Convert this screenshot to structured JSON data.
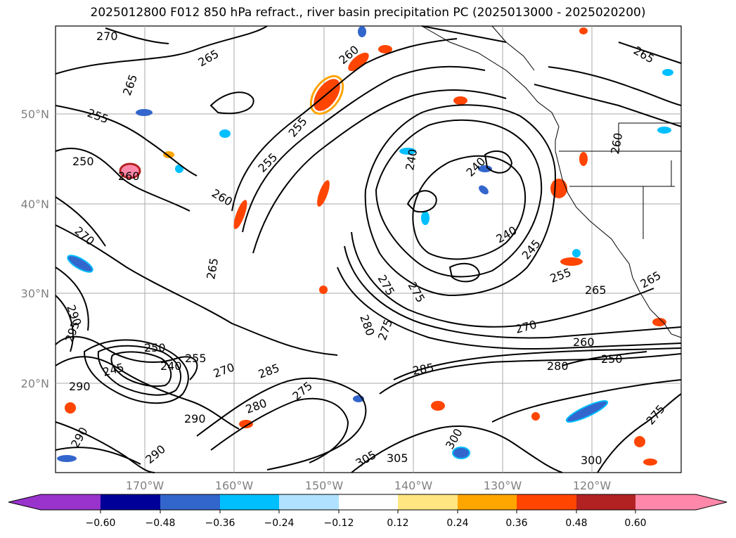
{
  "title": "2025012800 F012 850 hPa refract., river basin precipitation PC (2025013000 - 2025020200)",
  "map": {
    "lat_labels": [
      "50°N",
      "40°N",
      "30°N",
      "20°N"
    ],
    "lon_labels": [
      "170°W",
      "160°W",
      "150°W",
      "140°W",
      "130°W",
      "120°W"
    ],
    "contour_labels": [
      "270",
      "265",
      "255",
      "250",
      "260",
      "260",
      "265",
      "255",
      "255",
      "260",
      "265",
      "270",
      "240",
      "240",
      "240",
      "245",
      "255",
      "265",
      "275",
      "275",
      "280",
      "275",
      "285",
      "290",
      "295",
      "290",
      "250",
      "245",
      "240",
      "255",
      "270",
      "275",
      "260",
      "250",
      "280",
      "270",
      "290",
      "290",
      "280",
      "285",
      "300",
      "305",
      "305",
      "300",
      "265",
      "275",
      "290",
      "265",
      "260"
    ]
  },
  "colorbar": {
    "ticks": [
      "−0.60",
      "−0.48",
      "−0.36",
      "−0.24",
      "−0.12",
      "0.12",
      "0.24",
      "0.36",
      "0.48",
      "0.60"
    ],
    "colors": [
      "#9933cc",
      "#000099",
      "#3366cc",
      "#00bfff",
      "#b0e2ff",
      "#ffffff",
      "#ffe680",
      "#ffa500",
      "#ff4500",
      "#b22222",
      "#ff88aa"
    ]
  }
}
